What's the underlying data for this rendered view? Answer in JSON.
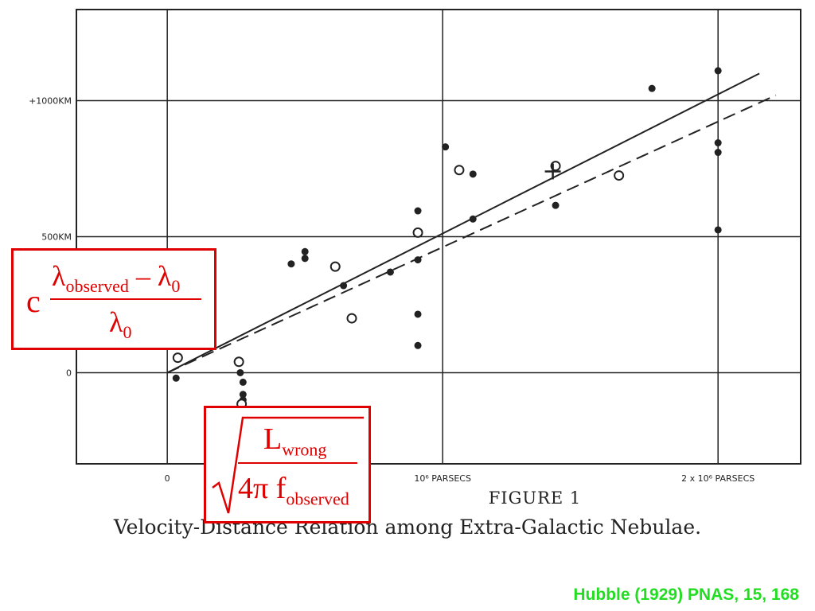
{
  "chart_data": {
    "type": "scatter",
    "title": "",
    "xlabel": "",
    "ylabel": "",
    "xlim": [
      -0.33,
      2.3
    ],
    "ylim": [
      -335,
      1335
    ],
    "x_unit_label": "PARSECS",
    "x_ticks": [
      {
        "value": 0,
        "label": "0"
      },
      {
        "value": 1,
        "label": "10⁶ PARSECS"
      },
      {
        "value": 2,
        "label": "2 x 10⁶ PARSECS"
      }
    ],
    "y_ticks": [
      {
        "value": 0,
        "label": "0"
      },
      {
        "value": 500,
        "label": "500KM"
      },
      {
        "value": 1000,
        "label": "+1000KM"
      }
    ],
    "grid": true,
    "series": [
      {
        "marker": "filled",
        "points": [
          [
            0.032,
            -20
          ],
          [
            0.26,
            35
          ],
          [
            0.26,
            40
          ],
          [
            0.26,
            38
          ],
          [
            0.26,
            42
          ],
          [
            0.263,
            40
          ],
          [
            0.263,
            40
          ],
          [
            0.263,
            40
          ],
          [
            0.263,
            40
          ],
          [
            0.263,
            40
          ],
          [
            0.26,
            40
          ],
          [
            0.26,
            40
          ],
          [
            0.26,
            40
          ],
          [
            0.26,
            40
          ],
          [
            0.26,
            40
          ],
          [
            0.26,
            40
          ],
          [
            0.26,
            40
          ],
          [
            0.26,
            40
          ],
          [
            0.26,
            40
          ],
          [
            0.26,
            40
          ],
          [
            0.26,
            40
          ],
          [
            0.26,
            40
          ],
          [
            0.26,
            40
          ],
          [
            0.263,
            40
          ],
          [
            0.263,
            40
          ],
          [
            0.263,
            40
          ],
          [
            0.263,
            40
          ],
          [
            0.263,
            40
          ],
          [
            0.263,
            40
          ],
          [
            0.263,
            40
          ],
          [
            0.263,
            40
          ],
          [
            0.263,
            40
          ],
          [
            0.263,
            40
          ],
          [
            0.263,
            40
          ],
          [
            0.263,
            40
          ],
          [
            0.263,
            40
          ],
          [
            0.263,
            40
          ],
          [
            0.263,
            40
          ],
          [
            0.263,
            40
          ],
          [
            0.263,
            40
          ],
          [
            0.263,
            40
          ],
          [
            0.263,
            40
          ],
          [
            0.263,
            40
          ],
          [
            0.263,
            40
          ],
          [
            0.263,
            40
          ],
          [
            0.263,
            40
          ],
          [
            0.263,
            40
          ],
          [
            0.263,
            40
          ],
          [
            0.263,
            40
          ],
          [
            0.263,
            40
          ],
          [
            0.263,
            40
          ],
          [
            0.263,
            40
          ],
          [
            0.263,
            40
          ],
          [
            0.263,
            40
          ],
          [
            0.263,
            40
          ],
          [
            0.263,
            40
          ],
          [
            0.263,
            40
          ],
          [
            0.263,
            40
          ],
          [
            0.263,
            40
          ],
          [
            0.263,
            40
          ],
          [
            0.263,
            40
          ],
          [
            0.263,
            40
          ],
          [
            0.263,
            40
          ],
          [
            0.263,
            40
          ],
          [
            0.263,
            40
          ],
          [
            0.263,
            40
          ],
          [
            0.263,
            40
          ],
          [
            0.263,
            40
          ]
        ]
      }
    ]
  },
  "figure": {
    "number_label": "FIGURE 1",
    "caption": "Velocity-Distance Relation among Extra-Galactic Nebulae."
  },
  "formulas": {
    "doppler": {
      "c": "c",
      "numerator": "λ",
      "numerator_sub": "observed",
      "minus": " – λ",
      "minus_sub": "0",
      "denominator": "λ",
      "denominator_sub": "0"
    },
    "distance": {
      "numerator": "L",
      "numerator_sub": "wrong",
      "denominator": "4π f",
      "denominator_sub": "observed"
    }
  },
  "credit": "Hubble (1929) PNAS, 15, 168",
  "colors": {
    "formula": "#e00000",
    "credit": "#22dd22",
    "ink": "#222222"
  }
}
